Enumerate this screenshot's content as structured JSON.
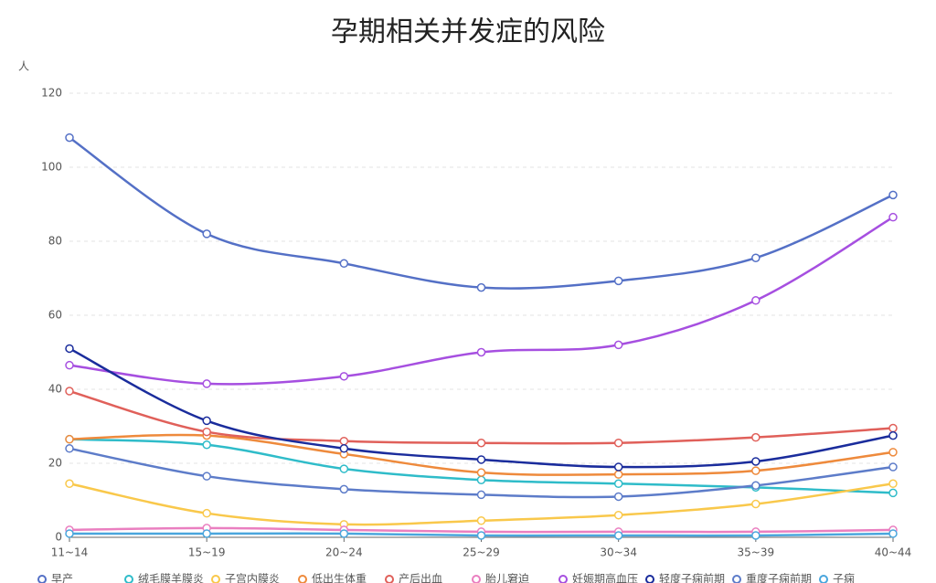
{
  "chart_data": {
    "type": "line",
    "title": "孕期相关并发症的风险",
    "y_label": "人",
    "categories": [
      "11~14",
      "15~19",
      "20~24",
      "25~29",
      "30~34",
      "35~39",
      "40~44"
    ],
    "ylim": [
      0,
      120
    ],
    "yticks": [
      0,
      20,
      40,
      60,
      80,
      100,
      120
    ],
    "grid": true,
    "smooth": true,
    "series": [
      {
        "name": "早产",
        "color": "#5470c6",
        "values": [
          108,
          82,
          74,
          67.5,
          69.3,
          75.5,
          92.5
        ]
      },
      {
        "name": "绒毛膜羊膜炎",
        "color": "#2fbcc9",
        "values": [
          26.5,
          25,
          18.5,
          15.5,
          14.5,
          13.5,
          12
        ]
      },
      {
        "name": "子宫内膜炎",
        "color": "#f9c84b",
        "values": [
          14.5,
          6.5,
          3.5,
          4.5,
          6,
          9,
          14.5
        ]
      },
      {
        "name": "低出生体重",
        "color": "#ee8a3c",
        "values": [
          26.5,
          27.5,
          22.5,
          17.5,
          17,
          18,
          23
        ]
      },
      {
        "name": "产后出血",
        "color": "#e0605a",
        "values": [
          39.5,
          28.5,
          26,
          25.5,
          25.5,
          27,
          29.5
        ]
      },
      {
        "name": "胎儿窘迫",
        "color": "#ea7fc0",
        "values": [
          2,
          2.5,
          2,
          1.5,
          1.5,
          1.5,
          2
        ]
      },
      {
        "name": "妊娠期高血压",
        "color": "#a64fe0",
        "values": [
          46.5,
          41.5,
          43.5,
          50,
          52,
          64,
          86.5
        ]
      },
      {
        "name": "轻度子痫前期",
        "color": "#1a2c9c",
        "values": [
          51,
          31.5,
          24,
          21,
          19,
          20.5,
          27.5
        ]
      },
      {
        "name": "重度子痫前期",
        "color": "#5d7cc9",
        "values": [
          24,
          16.5,
          13,
          11.5,
          11,
          14,
          19
        ]
      },
      {
        "name": "子痫",
        "color": "#4aa6dd",
        "values": [
          1,
          1,
          1,
          0.5,
          0.5,
          0.5,
          1
        ]
      }
    ]
  }
}
